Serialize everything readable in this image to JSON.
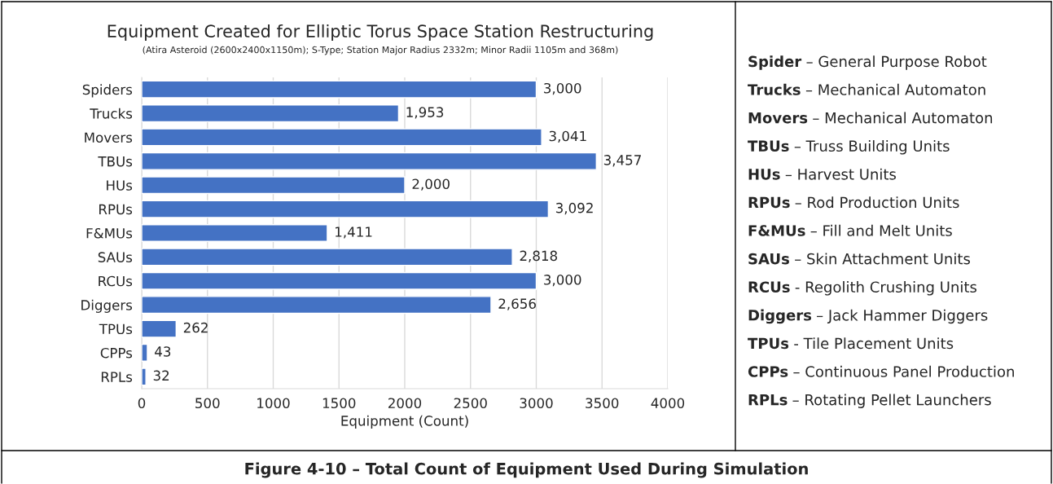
{
  "chart_data": [
    {
      "type": "bar",
      "orientation": "horizontal",
      "title": "Equipment Created for Elliptic Torus Space Station Restructuring",
      "subtitle": "(Atira Asteroid (2600x2400x1150m); S-Type; Station Major Radius 2332m; Minor Radii 1105m and 368m)",
      "xlabel": "Equipment (Count)",
      "categories": [
        "Spiders",
        "Trucks",
        "Movers",
        "TBUs",
        "HUs",
        "RPUs",
        "F&MUs",
        "SAUs",
        "RCUs",
        "Diggers",
        "TPUs",
        "CPPs",
        "RPLs"
      ],
      "values": [
        3000,
        1953,
        3041,
        3457,
        2000,
        3092,
        1411,
        2818,
        3000,
        2656,
        262,
        43,
        32
      ],
      "value_labels": [
        "3,000",
        "1,953",
        "3,041",
        "3,457",
        "2,000",
        "3,092",
        "1,411",
        "2,818",
        "3,000",
        "2,656",
        "262",
        "43",
        "32"
      ],
      "color": "#4472c4",
      "xlim": [
        0,
        4000
      ],
      "xticks": [
        0,
        500,
        1000,
        1500,
        2000,
        2500,
        3000,
        3500,
        4000
      ],
      "grid": "x",
      "legend": false,
      "annotations": [
        "Figure 4-10 – Total Count of Equipment Used During Simulation"
      ]
    },
    {
      "type": "other",
      "categories": [
        "Spider",
        "Trucks",
        "Movers",
        "TBUs",
        "HUs",
        "RPUs",
        "F&MUs",
        "SAUs",
        "RCUs",
        "Diggers",
        "TPUs",
        "CPPs",
        "RPLs"
      ],
      "annotations": [
        " – General Purpose Robot",
        " – Mechanical Automaton",
        " – Mechanical Automaton",
        " – Truss Building Units",
        " – Harvest Units",
        " – Rod Production Units",
        " – Fill and Melt Units",
        " – Skin Attachment Units",
        " - Regolith Crushing Units",
        " – Jack Hammer Diggers",
        " - Tile Placement Units",
        " – Continuous Panel Production",
        " – Rotating Pellet Launchers"
      ]
    }
  ]
}
